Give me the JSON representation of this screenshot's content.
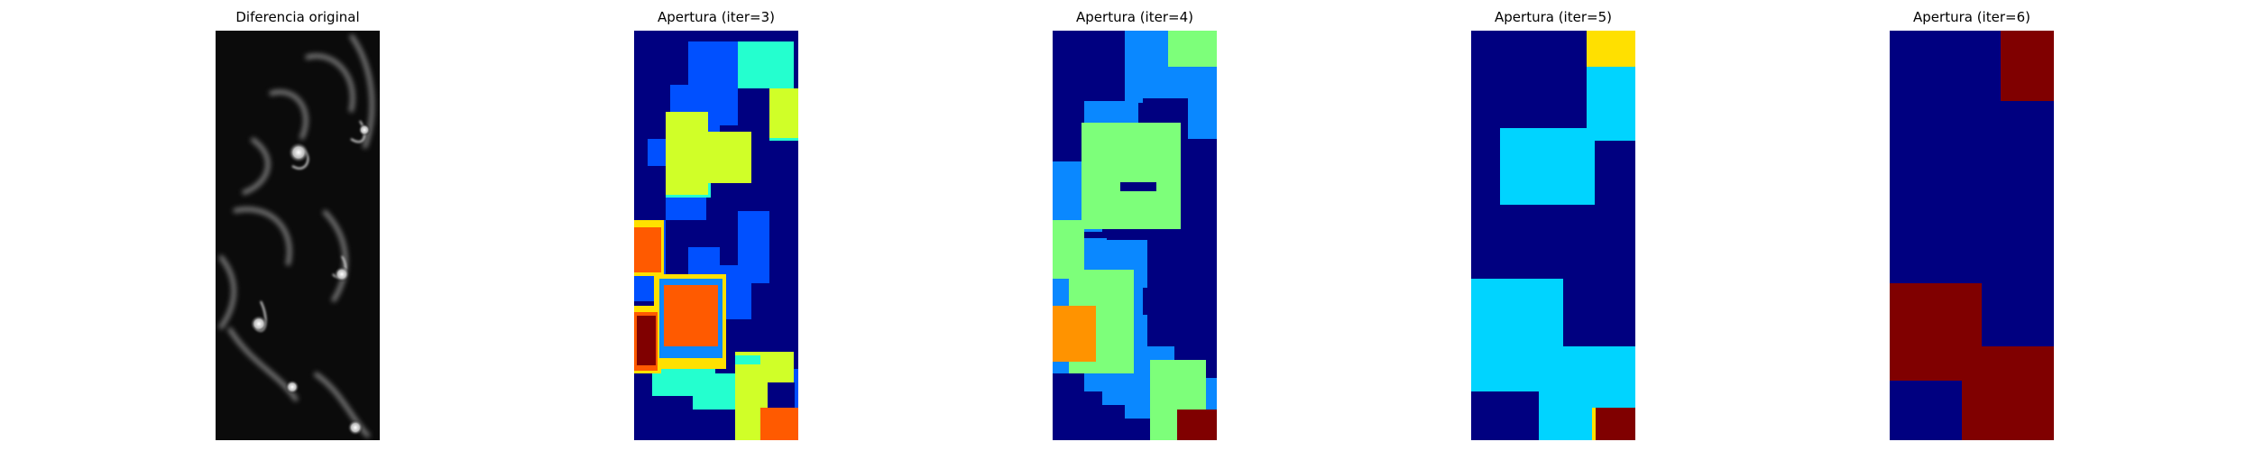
{
  "figure": {
    "panels": [
      {
        "title": "Diferencia original",
        "kind": "grayscale-difference-image",
        "colormap": "gray"
      },
      {
        "title": "Apertura (iter=3)",
        "kind": "segmented-label-map",
        "colormap": "jet"
      },
      {
        "title": "Apertura (iter=4)",
        "kind": "segmented-label-map",
        "colormap": "jet"
      },
      {
        "title": "Apertura (iter=5)",
        "kind": "segmented-label-map",
        "colormap": "jet"
      },
      {
        "title": "Apertura (iter=6)",
        "kind": "segmented-label-map",
        "colormap": "jet"
      }
    ]
  },
  "colors": {
    "jet_dark_blue": "#000080",
    "jet_blue": "#0050ff",
    "jet_mid_blue": "#0a88ff",
    "jet_cyan": "#00d4ff",
    "jet_aquamarine": "#24ffcf",
    "jet_green": "#7dff7a",
    "jet_yellow_green": "#d0ff28",
    "jet_yellow": "#ffe000",
    "jet_orange": "#ff9300",
    "jet_red_orange": "#ff5a00",
    "jet_dark_red": "#800000",
    "background": "#ffffff"
  }
}
